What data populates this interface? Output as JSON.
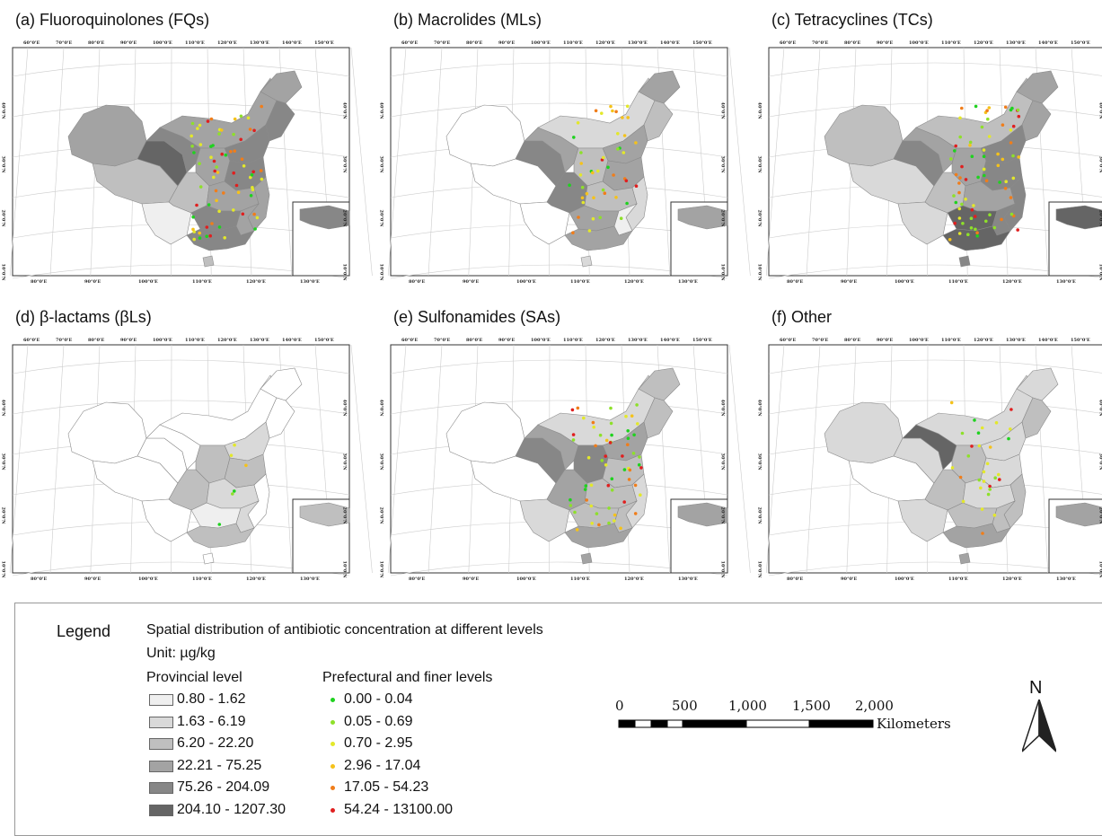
{
  "panels": [
    {
      "id": "a",
      "title": "(a) Fluoroquinolones (FQs)"
    },
    {
      "id": "b",
      "title": "(b) Macrolides (MLs)"
    },
    {
      "id": "c",
      "title": "(c) Tetracyclines (TCs)"
    },
    {
      "id": "d",
      "title": "(d) β-lactams (βLs)"
    },
    {
      "id": "e",
      "title": "(e) Sulfonamides (SAs)"
    },
    {
      "id": "f",
      "title": "(f) Other"
    }
  ],
  "map_ticks": {
    "top": [
      "60°0'E",
      "70°0'E",
      "80°0'E",
      "90°0'E",
      "100°0'E",
      "110°0'E",
      "120°0'E",
      "130°0'E",
      "140°0'E",
      "150°0'E"
    ],
    "bottom": [
      "80°0'E",
      "90°0'E",
      "100°0'E",
      "110°0'E",
      "120°0'E",
      "130°0'E"
    ],
    "left": [
      "40°0'N",
      "30°0'N",
      "20°0'N",
      "10°0'N"
    ],
    "right": [
      "40°0'N",
      "30°0'N",
      "20°0'N",
      "10°0'N"
    ]
  },
  "legend": {
    "heading": "Legend",
    "title": "Spatial distribution of antibiotic concentration at different levels",
    "unit": "Unit: µg/kg",
    "provincial_title": "Provincial level",
    "provincial": [
      {
        "label": "0.80 - 1.62",
        "color": "#efefef"
      },
      {
        "label": "1.63 - 6.19",
        "color": "#d9d9d9"
      },
      {
        "label": "6.20 - 22.20",
        "color": "#bfbfbf"
      },
      {
        "label": "22.21 - 75.25",
        "color": "#a3a3a3"
      },
      {
        "label": "75.26 - 204.09",
        "color": "#878787"
      },
      {
        "label": "204.10 - 1207.30",
        "color": "#656565"
      }
    ],
    "prefectural_title": "Prefectural and finer levels",
    "prefectural": [
      {
        "label": "0.00 - 0.04",
        "color": "#1fd21f"
      },
      {
        "label": "0.05 - 0.69",
        "color": "#8ee02a"
      },
      {
        "label": "0.70 - 2.95",
        "color": "#e3e82a"
      },
      {
        "label": "2.96 - 17.04",
        "color": "#f5c21a"
      },
      {
        "label": "17.05 - 54.23",
        "color": "#f07d1a"
      },
      {
        "label": "54.24 - 13100.00",
        "color": "#e01f1f"
      }
    ]
  },
  "scale_bar": {
    "numbers": [
      "0",
      "500",
      "1,000",
      "1,500",
      "2,000"
    ],
    "unit": "Kilometers"
  },
  "north_arrow": {
    "label": "N",
    "icon": "north-arrow-icon"
  }
}
